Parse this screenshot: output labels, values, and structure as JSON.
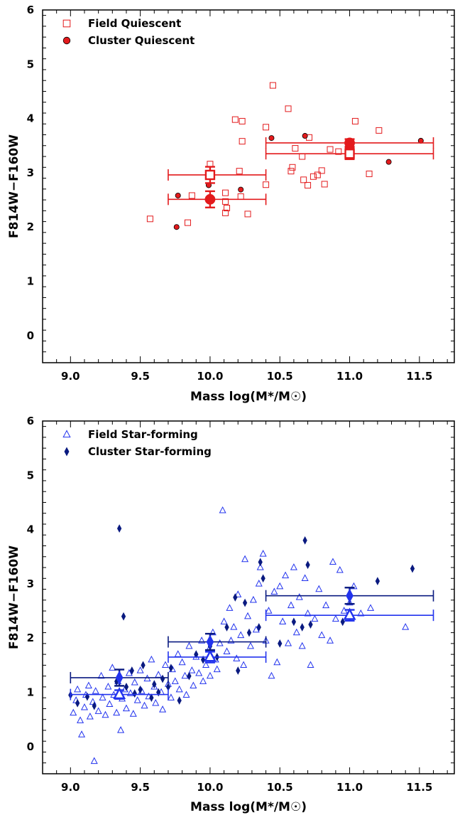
{
  "colors": {
    "quiescent": "#e31a1c",
    "starforming_field": "#2233ee",
    "starforming_cluster": "#0a1a80"
  },
  "chart_data": [
    {
      "type": "scatter",
      "xlabel": "Mass log(M*/M☉)",
      "ylabel": "F814W−F160W",
      "xlim": [
        8.8,
        11.75
      ],
      "ylim": [
        -0.5,
        6
      ],
      "xticks": [
        "9.0",
        "9.5",
        "10.0",
        "10.5",
        "11.0",
        "11.5"
      ],
      "yticks": [
        "0",
        "1",
        "2",
        "3",
        "4",
        "5",
        "6"
      ],
      "legend_position": "top-left",
      "series": [
        {
          "name": "Field Quiescent",
          "marker": "open-square",
          "points": [
            [
              9.57,
              2.15
            ],
            [
              9.84,
              2.08
            ],
            [
              9.87,
              2.58
            ],
            [
              10.0,
              3.16
            ],
            [
              10.11,
              2.26
            ],
            [
              10.11,
              2.47
            ],
            [
              10.12,
              2.35
            ],
            [
              10.11,
              2.63
            ],
            [
              10.18,
              3.98
            ],
            [
              10.21,
              3.03
            ],
            [
              10.22,
              2.56
            ],
            [
              10.23,
              3.95
            ],
            [
              10.23,
              3.58
            ],
            [
              10.27,
              2.24
            ],
            [
              10.4,
              2.78
            ],
            [
              10.4,
              3.84
            ],
            [
              10.45,
              4.61
            ],
            [
              10.56,
              4.18
            ],
            [
              10.58,
              3.03
            ],
            [
              10.59,
              3.1
            ],
            [
              10.61,
              3.45
            ],
            [
              10.66,
              3.3
            ],
            [
              10.67,
              2.87
            ],
            [
              10.7,
              2.77
            ],
            [
              10.71,
              3.65
            ],
            [
              10.74,
              2.93
            ],
            [
              10.77,
              2.96
            ],
            [
              10.8,
              3.04
            ],
            [
              10.82,
              2.79
            ],
            [
              10.86,
              3.43
            ],
            [
              10.92,
              3.39
            ],
            [
              11.04,
              3.95
            ],
            [
              11.14,
              2.98
            ],
            [
              11.21,
              3.78
            ]
          ]
        },
        {
          "name": "Cluster Quiescent",
          "marker": "filled-circle",
          "points": [
            [
              9.76,
              2.0
            ],
            [
              9.77,
              2.58
            ],
            [
              9.99,
              2.77
            ],
            [
              10.22,
              2.69
            ],
            [
              10.44,
              3.64
            ],
            [
              10.68,
              3.68
            ],
            [
              11.28,
              3.2
            ],
            [
              11.51,
              3.59
            ]
          ]
        }
      ],
      "binned": [
        {
          "series": "Field Quiescent",
          "x": 10.0,
          "y": 2.96,
          "xerr_low": 9.7,
          "xerr_high": 10.4,
          "yerr": 0.15
        },
        {
          "series": "Cluster Quiescent",
          "x": 10.0,
          "y": 2.51,
          "xerr_low": 9.7,
          "xerr_high": 10.4,
          "yerr": 0.15
        },
        {
          "series": "Field Quiescent",
          "x": 11.0,
          "y": 3.35,
          "xerr_low": 10.4,
          "xerr_high": 11.6,
          "yerr": 0.1
        },
        {
          "series": "Cluster Quiescent",
          "x": 11.0,
          "y": 3.55,
          "xerr_low": 10.4,
          "xerr_high": 11.6,
          "yerr": 0.07
        }
      ]
    },
    {
      "type": "scatter",
      "xlabel": "Mass log(M*/M☉)",
      "ylabel": "F814W−F160W",
      "xlim": [
        8.8,
        11.75
      ],
      "ylim": [
        -0.5,
        6
      ],
      "xticks": [
        "9.0",
        "9.5",
        "10.0",
        "10.5",
        "11.0",
        "11.5"
      ],
      "yticks": [
        "0",
        "1",
        "2",
        "3",
        "4",
        "5",
        "6"
      ],
      "legend_position": "top-left",
      "series": [
        {
          "name": "Field Star-forming",
          "marker": "open-triangle",
          "points": [
            [
              9.02,
              0.62
            ],
            [
              9.04,
              0.85
            ],
            [
              9.05,
              1.05
            ],
            [
              9.07,
              0.48
            ],
            [
              9.08,
              0.22
            ],
            [
              9.1,
              0.72
            ],
            [
              9.11,
              0.95
            ],
            [
              9.13,
              1.12
            ],
            [
              9.14,
              0.55
            ],
            [
              9.16,
              0.82
            ],
            [
              9.17,
              -0.27
            ],
            [
              9.18,
              1.02
            ],
            [
              9.2,
              0.65
            ],
            [
              9.22,
              1.3
            ],
            [
              9.23,
              0.9
            ],
            [
              9.25,
              0.58
            ],
            [
              9.27,
              1.1
            ],
            [
              9.28,
              0.78
            ],
            [
              9.3,
              1.45
            ],
            [
              9.31,
              0.95
            ],
            [
              9.33,
              0.62
            ],
            [
              9.34,
              1.2
            ],
            [
              9.36,
              0.3
            ],
            [
              9.37,
              0.88
            ],
            [
              9.39,
              1.05
            ],
            [
              9.4,
              0.7
            ],
            [
              9.42,
              1.35
            ],
            [
              9.43,
              0.98
            ],
            [
              9.45,
              0.6
            ],
            [
              9.46,
              1.18
            ],
            [
              9.48,
              0.85
            ],
            [
              9.5,
              1.4
            ],
            [
              9.51,
              1.02
            ],
            [
              9.53,
              0.75
            ],
            [
              9.55,
              1.25
            ],
            [
              9.56,
              0.92
            ],
            [
              9.58,
              1.6
            ],
            [
              9.6,
              1.1
            ],
            [
              9.61,
              0.8
            ],
            [
              9.63,
              1.32
            ],
            [
              9.65,
              1.0
            ],
            [
              9.66,
              0.68
            ],
            [
              9.68,
              1.5
            ],
            [
              9.7,
              1.15
            ],
            [
              9.72,
              0.9
            ],
            [
              9.73,
              1.42
            ],
            [
              9.75,
              1.2
            ],
            [
              9.77,
              1.7
            ],
            [
              9.78,
              1.05
            ],
            [
              9.8,
              1.55
            ],
            [
              9.82,
              1.3
            ],
            [
              9.83,
              0.95
            ],
            [
              9.85,
              1.85
            ],
            [
              9.87,
              1.4
            ],
            [
              9.88,
              1.12
            ],
            [
              9.9,
              1.65
            ],
            [
              9.92,
              1.35
            ],
            [
              9.94,
              1.95
            ],
            [
              9.95,
              1.2
            ],
            [
              9.97,
              1.5
            ],
            [
              9.99,
              1.78
            ],
            [
              10.0,
              1.3
            ],
            [
              10.02,
              2.1
            ],
            [
              10.04,
              1.6
            ],
            [
              10.05,
              1.42
            ],
            [
              10.07,
              1.9
            ],
            [
              10.09,
              4.35
            ],
            [
              10.1,
              2.3
            ],
            [
              10.12,
              1.75
            ],
            [
              10.14,
              2.55
            ],
            [
              10.15,
              1.95
            ],
            [
              10.17,
              2.2
            ],
            [
              10.19,
              1.62
            ],
            [
              10.2,
              2.8
            ],
            [
              10.22,
              2.05
            ],
            [
              10.24,
              1.5
            ],
            [
              10.25,
              3.45
            ],
            [
              10.27,
              2.4
            ],
            [
              10.29,
              1.85
            ],
            [
              10.31,
              2.7
            ],
            [
              10.33,
              2.15
            ],
            [
              10.35,
              3.0
            ],
            [
              10.36,
              3.3
            ],
            [
              10.38,
              3.55
            ],
            [
              10.4,
              1.95
            ],
            [
              10.42,
              2.5
            ],
            [
              10.44,
              1.3
            ],
            [
              10.46,
              2.85
            ],
            [
              10.48,
              1.55
            ],
            [
              10.5,
              2.95
            ],
            [
              10.52,
              2.3
            ],
            [
              10.54,
              3.15
            ],
            [
              10.56,
              1.9
            ],
            [
              10.58,
              2.6
            ],
            [
              10.6,
              3.3
            ],
            [
              10.62,
              2.1
            ],
            [
              10.64,
              2.75
            ],
            [
              10.66,
              1.85
            ],
            [
              10.68,
              3.1
            ],
            [
              10.7,
              2.45
            ],
            [
              10.72,
              1.5
            ],
            [
              10.75,
              2.35
            ],
            [
              10.78,
              2.9
            ],
            [
              10.8,
              2.05
            ],
            [
              10.83,
              2.6
            ],
            [
              10.86,
              1.95
            ],
            [
              10.88,
              3.4
            ],
            [
              10.9,
              2.35
            ],
            [
              10.93,
              3.25
            ],
            [
              10.96,
              2.5
            ],
            [
              11.0,
              2.65
            ],
            [
              11.03,
              2.95
            ],
            [
              11.08,
              2.45
            ],
            [
              11.15,
              2.55
            ],
            [
              11.4,
              2.2
            ]
          ]
        },
        {
          "name": "Cluster Star-forming",
          "marker": "filled-diamond",
          "points": [
            [
              9.0,
              0.95
            ],
            [
              9.05,
              0.8
            ],
            [
              9.12,
              0.92
            ],
            [
              9.17,
              0.75
            ],
            [
              9.33,
              1.2
            ],
            [
              9.35,
              4.02
            ],
            [
              9.38,
              2.4
            ],
            [
              9.4,
              1.1
            ],
            [
              9.44,
              1.4
            ],
            [
              9.46,
              0.98
            ],
            [
              9.5,
              1.05
            ],
            [
              9.52,
              1.5
            ],
            [
              9.58,
              0.9
            ],
            [
              9.6,
              1.15
            ],
            [
              9.63,
              1.0
            ],
            [
              9.66,
              1.25
            ],
            [
              9.7,
              1.1
            ],
            [
              9.72,
              1.45
            ],
            [
              9.78,
              0.85
            ],
            [
              9.85,
              1.3
            ],
            [
              9.9,
              1.7
            ],
            [
              9.95,
              1.6
            ],
            [
              10.0,
              1.85
            ],
            [
              10.05,
              1.65
            ],
            [
              10.12,
              2.2
            ],
            [
              10.18,
              2.75
            ],
            [
              10.2,
              1.4
            ],
            [
              10.25,
              2.65
            ],
            [
              10.28,
              2.1
            ],
            [
              10.35,
              2.2
            ],
            [
              10.36,
              3.4
            ],
            [
              10.38,
              3.1
            ],
            [
              10.5,
              1.9
            ],
            [
              10.6,
              2.3
            ],
            [
              10.66,
              2.2
            ],
            [
              10.68,
              3.8
            ],
            [
              10.7,
              3.35
            ],
            [
              10.72,
              2.25
            ],
            [
              10.95,
              2.3
            ],
            [
              11.2,
              3.05
            ],
            [
              11.45,
              3.28
            ]
          ]
        }
      ],
      "binned": [
        {
          "series": "Field Star-forming",
          "x": 9.35,
          "y": 0.96,
          "xerr_low": 9.0,
          "xerr_high": 9.7,
          "yerr": 0.08
        },
        {
          "series": "Cluster Star-forming",
          "x": 9.35,
          "y": 1.27,
          "xerr_low": 9.0,
          "xerr_high": 9.7,
          "yerr": 0.15
        },
        {
          "series": "Field Star-forming",
          "x": 10.0,
          "y": 1.65,
          "xerr_low": 9.7,
          "xerr_high": 10.4,
          "yerr": 0.1
        },
        {
          "series": "Cluster Star-forming",
          "x": 10.0,
          "y": 1.93,
          "xerr_low": 9.7,
          "xerr_high": 10.4,
          "yerr": 0.15
        },
        {
          "series": "Field Star-forming",
          "x": 11.0,
          "y": 2.42,
          "xerr_low": 10.4,
          "xerr_high": 11.6,
          "yerr": 0.1
        },
        {
          "series": "Cluster Star-forming",
          "x": 11.0,
          "y": 2.78,
          "xerr_low": 10.4,
          "xerr_high": 11.6,
          "yerr": 0.15
        }
      ]
    }
  ]
}
